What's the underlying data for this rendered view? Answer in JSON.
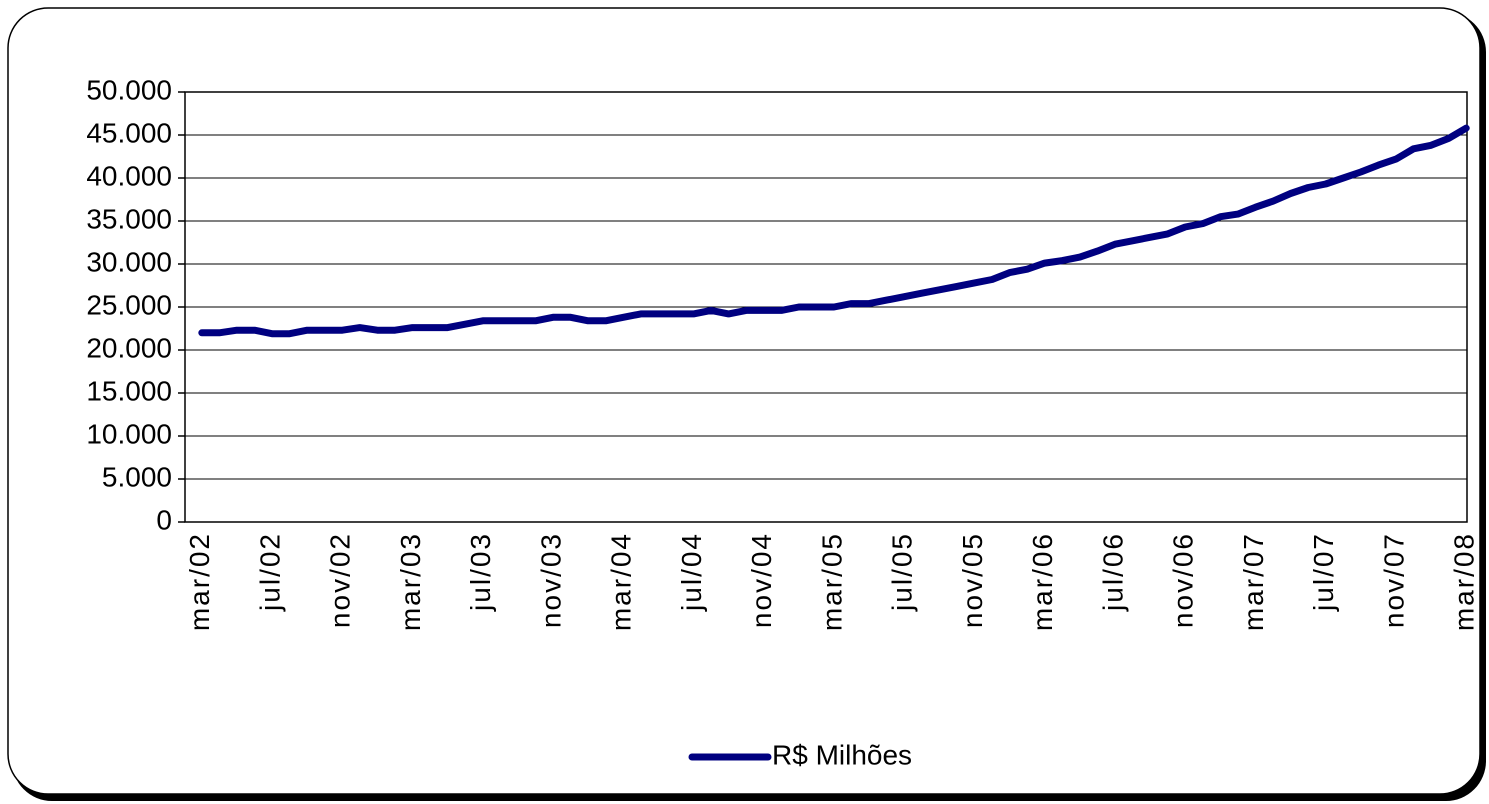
{
  "chart_data": {
    "type": "line",
    "categories": [
      "mar/02",
      null,
      null,
      null,
      "jul/02",
      null,
      null,
      null,
      "nov/02",
      null,
      null,
      null,
      "mar/03",
      null,
      null,
      null,
      "jul/03",
      null,
      null,
      null,
      "nov/03",
      null,
      null,
      null,
      "mar/04",
      null,
      null,
      null,
      "jul/04",
      null,
      null,
      null,
      "nov/04",
      null,
      null,
      null,
      "mar/05",
      null,
      null,
      null,
      "jul/05",
      null,
      null,
      null,
      "nov/05",
      null,
      null,
      null,
      "mar/06",
      null,
      null,
      null,
      "jul/06",
      null,
      null,
      null,
      "nov/06",
      null,
      null,
      null,
      "mar/07",
      null,
      null,
      null,
      "jul/07",
      null,
      null,
      null,
      "nov/07",
      null,
      null,
      null,
      "mar/08"
    ],
    "series": [
      {
        "name": "R$ Milhões",
        "color": "#000080",
        "values": [
          22000,
          22000,
          22300,
          22300,
          21900,
          21900,
          22300,
          22300,
          22300,
          22600,
          22300,
          22300,
          22600,
          22600,
          22600,
          23000,
          23400,
          23400,
          23400,
          23400,
          23800,
          23800,
          23400,
          23400,
          23800,
          24200,
          24200,
          24200,
          24200,
          24600,
          24200,
          24600,
          24600,
          24600,
          25000,
          25000,
          25000,
          25400,
          25400,
          25800,
          26200,
          26600,
          27000,
          27400,
          27800,
          28200,
          29000,
          29400,
          30100,
          30400,
          30800,
          31500,
          32300,
          32700,
          33100,
          33500,
          34300,
          34700,
          35500,
          35800,
          36600,
          37300,
          38200,
          38900,
          39300,
          40000,
          40700,
          41500,
          42200,
          43400,
          43800,
          44600,
          45800
        ]
      }
    ],
    "ylim": [
      0,
      50000
    ],
    "yticks": [
      0,
      {
        "value": 5000,
        "label": "5.000"
      },
      {
        "value": 10000,
        "label": "10.000"
      },
      {
        "value": 15000,
        "label": "15.000"
      },
      {
        "value": 20000,
        "label": "20.000"
      },
      {
        "value": 25000,
        "label": "25.000"
      },
      {
        "value": 30000,
        "label": "30.000"
      },
      {
        "value": 35000,
        "label": "35.000"
      },
      {
        "value": 40000,
        "label": "40.000"
      },
      {
        "value": 45000,
        "label": "45.000"
      },
      {
        "value": 50000,
        "label": "50.000"
      }
    ],
    "grid": true,
    "legend": "bottom"
  }
}
